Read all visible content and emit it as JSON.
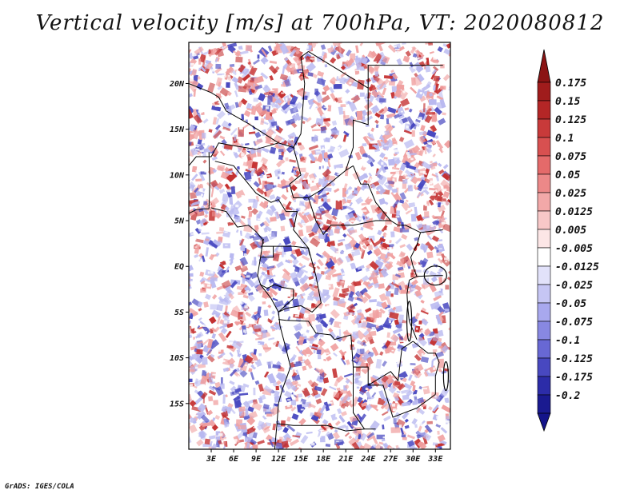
{
  "title": "Vertical velocity [m/s] at 700hPa, VT: 2020080812",
  "footer": "GrADS: IGES/COLA",
  "map": {
    "variable": "Vertical velocity",
    "units": "m/s",
    "level": "700hPa",
    "valid_time": "2020080812",
    "lon_range": [
      0,
      35
    ],
    "lat_range": [
      -20,
      24.5
    ],
    "lon_ticks": [
      {
        "value": 3,
        "label": "3E"
      },
      {
        "value": 6,
        "label": "6E"
      },
      {
        "value": 9,
        "label": "9E"
      },
      {
        "value": 12,
        "label": "12E"
      },
      {
        "value": 15,
        "label": "15E"
      },
      {
        "value": 18,
        "label": "18E"
      },
      {
        "value": 21,
        "label": "21E"
      },
      {
        "value": 24,
        "label": "24E"
      },
      {
        "value": 27,
        "label": "27E"
      },
      {
        "value": 30,
        "label": "30E"
      },
      {
        "value": 33,
        "label": "33E"
      }
    ],
    "lat_ticks": [
      {
        "value": 20,
        "label": "20N"
      },
      {
        "value": 15,
        "label": "15N"
      },
      {
        "value": 10,
        "label": "10N"
      },
      {
        "value": 5,
        "label": "5N"
      },
      {
        "value": 0,
        "label": "EQ"
      },
      {
        "value": -5,
        "label": "5S"
      },
      {
        "value": -10,
        "label": "10S"
      },
      {
        "value": -15,
        "label": "15S"
      }
    ]
  },
  "colorbar": {
    "levels": [
      {
        "label": "0.175",
        "color": "#a01c1c"
      },
      {
        "label": "0.15",
        "color": "#b42626"
      },
      {
        "label": "0.125",
        "color": "#c83a3a"
      },
      {
        "label": "0.1",
        "color": "#d85050"
      },
      {
        "label": "0.075",
        "color": "#e46a6a"
      },
      {
        "label": "0.05",
        "color": "#ec8888"
      },
      {
        "label": "0.025",
        "color": "#f2a8a8"
      },
      {
        "label": "0.0125",
        "color": "#f8c8c8"
      },
      {
        "label": "0.005",
        "color": "#fce6e6"
      },
      {
        "label": "-0.005",
        "color": "#ffffff"
      },
      {
        "label": "-0.0125",
        "color": "#e2e2fa"
      },
      {
        "label": "-0.025",
        "color": "#c6c6f4"
      },
      {
        "label": "-0.05",
        "color": "#a8a8ee"
      },
      {
        "label": "-0.075",
        "color": "#8888e2"
      },
      {
        "label": "-0.1",
        "color": "#6868d4"
      },
      {
        "label": "-0.125",
        "color": "#4848c0"
      },
      {
        "label": "-0.175",
        "color": "#2c2ca8"
      },
      {
        "label": "-0.2",
        "color": "#1a1a90"
      }
    ],
    "top_color": "#8b1414",
    "bottom_color": "#14148a"
  },
  "colors": {
    "pos_strong": "#c43030",
    "pos_weak": "#f0a0a0",
    "neg_weak": "#b8b8f0",
    "neg_strong": "#4848c0",
    "border": "#000000"
  }
}
